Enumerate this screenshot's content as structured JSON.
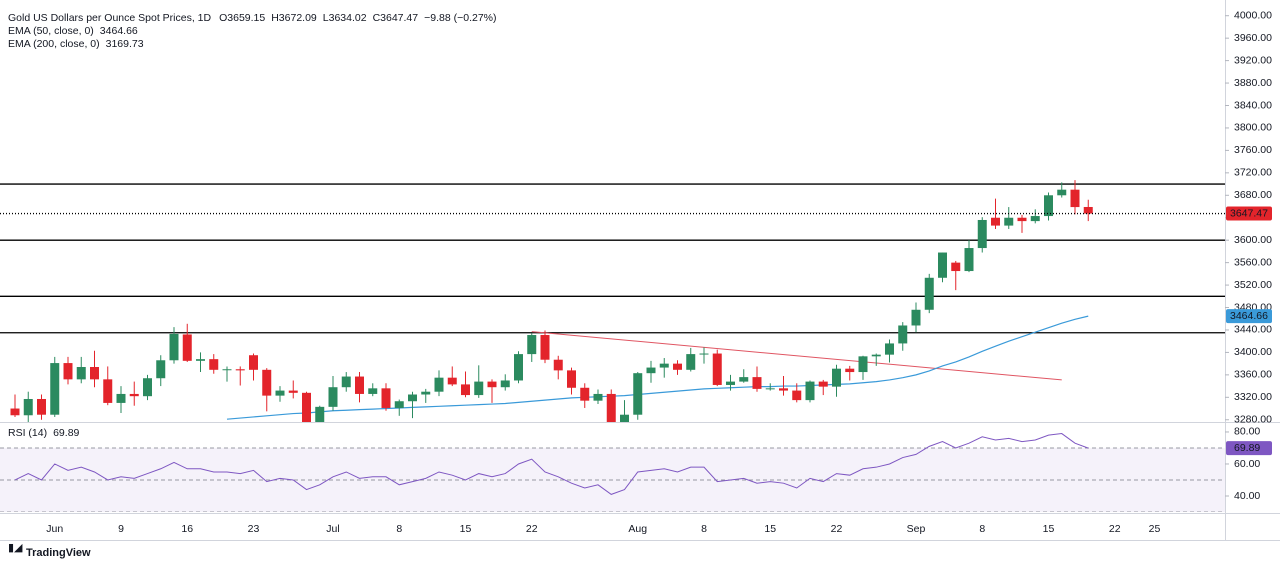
{
  "chart_data": {
    "type": "candlestick",
    "title": "Gold US Dollars per Ounce Spot Prices, 1D",
    "ohlc_text": [
      "O3659.15",
      "H3672.09",
      "L3634.02",
      "C3647.47",
      "−9.88 (−0.27%)"
    ],
    "categories": [
      null,
      null,
      null,
      "Jun",
      null,
      null,
      null,
      null,
      "9",
      null,
      null,
      null,
      null,
      "16",
      null,
      null,
      null,
      null,
      "23",
      null,
      null,
      null,
      null,
      null,
      "Jul",
      null,
      null,
      null,
      null,
      "8",
      null,
      null,
      null,
      null,
      "15",
      null,
      null,
      null,
      null,
      "22",
      null,
      null,
      null,
      null,
      null,
      null,
      null,
      "Aug",
      null,
      null,
      null,
      null,
      "8",
      null,
      null,
      null,
      null,
      "15",
      null,
      null,
      null,
      null,
      "22",
      null,
      null,
      null,
      null,
      null,
      "Sep",
      null,
      null,
      null,
      null,
      "8",
      null,
      null,
      null,
      null,
      "15",
      null,
      null,
      null,
      null,
      "22",
      null,
      null,
      "25"
    ],
    "open": [
      3300,
      3288,
      3317,
      3289,
      3381,
      3352,
      3374,
      3352,
      3310,
      3326,
      3322,
      3354,
      3386,
      3432,
      3385,
      3388,
      3369,
      3370,
      3395,
      3369,
      3323,
      3332,
      3328,
      3274,
      3303,
      3338,
      3357,
      3326,
      3336,
      3301,
      3313,
      3325,
      3330,
      3355,
      3343,
      3324,
      3348,
      3338,
      3350,
      3397,
      3431,
      3387,
      3368,
      3337,
      3314,
      3326,
      3274,
      3289,
      3363,
      3373,
      3380,
      3369,
      3397,
      3398,
      3342,
      3348,
      3356,
      3335,
      3336,
      3332,
      3315,
      3348,
      3339,
      3371,
      3365,
      3393,
      3396,
      3416,
      3448,
      3476,
      3533,
      3560,
      3545,
      3586,
      3640,
      3626,
      3640,
      3634,
      3643,
      3680,
      3690,
      3659.15,
      null,
      null,
      null,
      null,
      null
    ],
    "high": [
      3325,
      3330,
      3325,
      3392,
      3392,
      3392,
      3403,
      3375,
      3340,
      3348,
      3360,
      3395,
      3445,
      3451,
      3400,
      3397,
      3375,
      3375,
      3398,
      3372,
      3340,
      3350,
      3330,
      3305,
      3358,
      3365,
      3365,
      3345,
      3345,
      3316,
      3330,
      3335,
      3368,
      3375,
      3366,
      3377,
      3352,
      3361,
      3402,
      3434,
      3439,
      3394,
      3373,
      3345,
      3334,
      3334,
      3315,
      3365,
      3385,
      3390,
      3386,
      3408,
      3409,
      3405,
      3360,
      3370,
      3375,
      3345,
      3358,
      3345,
      3350,
      3351,
      3378,
      3376,
      3394,
      3398,
      3423,
      3454,
      3489,
      3540,
      3578,
      3563,
      3600,
      3641,
      3674,
      3659,
      3645,
      3655,
      3685,
      3703,
      3707,
      3672.09,
      null,
      null,
      null,
      null,
      null
    ],
    "low": [
      3285,
      3270,
      3280,
      3285,
      3343,
      3345,
      3338,
      3306,
      3292,
      3305,
      3315,
      3340,
      3380,
      3383,
      3365,
      3362,
      3348,
      3341,
      3350,
      3295,
      3312,
      3318,
      3255,
      3260,
      3296,
      3330,
      3311,
      3322,
      3296,
      3287,
      3283,
      3310,
      3322,
      3340,
      3320,
      3319,
      3310,
      3332,
      3345,
      3383,
      3381,
      3352,
      3325,
      3301,
      3308,
      3268,
      3268,
      3280,
      3346,
      3355,
      3360,
      3366,
      3380,
      3340,
      3332,
      3346,
      3330,
      3332,
      3323,
      3311,
      3311,
      3324,
      3321,
      3350,
      3351,
      3376,
      3382,
      3403,
      3436,
      3470,
      3525,
      3511,
      3543,
      3578,
      3620,
      3620,
      3613,
      3630,
      3635,
      3676,
      3646,
      3634.02,
      null,
      null,
      null,
      null,
      null
    ],
    "close": [
      3288,
      3317,
      3289,
      3381,
      3352,
      3374,
      3352,
      3310,
      3326,
      3322,
      3354,
      3386,
      3433,
      3385,
      3388,
      3369,
      3370,
      3368,
      3369,
      3323,
      3332,
      3328,
      3274,
      3303,
      3338,
      3357,
      3326,
      3336,
      3301,
      3313,
      3325,
      3330,
      3355,
      3343,
      3324,
      3348,
      3338,
      3350,
      3397,
      3431,
      3387,
      3368,
      3337,
      3314,
      3326,
      3274,
      3289,
      3363,
      3373,
      3380,
      3369,
      3397,
      3398,
      3342,
      3348,
      3356,
      3335,
      3336,
      3332,
      3315,
      3348,
      3339,
      3371,
      3365,
      3393,
      3396,
      3416,
      3448,
      3476,
      3533,
      3578,
      3545,
      3586,
      3636,
      3626,
      3640,
      3634,
      3643,
      3680,
      3690,
      3659,
      3647.47,
      null,
      null,
      null,
      null,
      null
    ],
    "up_color": "#2b8a5f",
    "down_color": "#e3242b",
    "series": [
      {
        "name": "EMA (50, close, 0)",
        "color": "#3a9ad9",
        "values": [
          null,
          null,
          null,
          null,
          null,
          null,
          null,
          null,
          null,
          null,
          null,
          null,
          null,
          null,
          null,
          null,
          3281,
          3283,
          3285,
          3287,
          3289,
          3291,
          3292,
          3294,
          3296,
          3297,
          3298,
          3299,
          3300,
          3301,
          3302,
          3303,
          3304,
          3305,
          3306,
          3307,
          3308,
          3309,
          3311,
          3313,
          3315,
          3317,
          3319,
          3320,
          3321,
          3322,
          3323,
          3325,
          3327,
          3329,
          3331,
          3333,
          3335,
          3336,
          3337,
          3338,
          3339,
          3339,
          3340,
          3340,
          3341,
          3342,
          3343,
          3344,
          3346,
          3348,
          3351,
          3355,
          3360,
          3367,
          3376,
          3383,
          3392,
          3402,
          3411,
          3420,
          3428,
          3436,
          3444,
          3452,
          3459,
          3464.66,
          null,
          null,
          null,
          null,
          null
        ]
      },
      {
        "name": "EMA (200, close, 0)",
        "color": "#d6336c",
        "last_value": 3169.73
      }
    ],
    "levels": [
      3700,
      3600,
      3500,
      3435
    ],
    "level_color": "#000000",
    "trendline": {
      "x": [
        39,
        79
      ],
      "y": [
        3437,
        3351
      ],
      "color": "#e05562"
    },
    "ylim": [
      3276,
      4028
    ],
    "yticks": [
      {
        "value": 3280,
        "label": "3280.00"
      },
      {
        "value": 3320,
        "label": "3320.00"
      },
      {
        "value": 3360,
        "label": "3360.00"
      },
      {
        "value": 3400,
        "label": "3400.00"
      },
      {
        "value": 3440,
        "label": "3440.00"
      },
      {
        "value": 3480,
        "label": "3480.00"
      },
      {
        "value": 3520,
        "label": "3520.00"
      },
      {
        "value": 3560,
        "label": "3560.00"
      },
      {
        "value": 3600,
        "label": "3600.00"
      },
      {
        "value": 3640,
        "label": "3640.00"
      },
      {
        "value": 3680,
        "label": "3680.00"
      },
      {
        "value": 3720,
        "label": "3720.00"
      },
      {
        "value": 3760,
        "label": "3760.00"
      },
      {
        "value": 3800,
        "label": "3800.00"
      },
      {
        "value": 3840,
        "label": "3840.00"
      },
      {
        "value": 3880,
        "label": "3880.00"
      },
      {
        "value": 3920,
        "label": "3920.00"
      },
      {
        "value": 3960,
        "label": "3960.00"
      },
      {
        "value": 4000,
        "label": "4000.00"
      }
    ],
    "grid": false,
    "rsi": {
      "name": "RSI (14)",
      "color": "#7e57c2",
      "values": [
        50,
        54,
        50,
        60,
        56,
        58,
        55,
        50,
        52,
        51,
        54,
        57,
        61,
        57,
        57,
        55,
        55,
        54,
        56,
        49,
        51,
        50,
        44,
        47,
        52,
        55,
        51,
        52,
        52,
        47,
        49,
        51,
        55,
        53,
        50,
        54,
        52,
        54,
        60,
        63,
        55,
        52,
        48,
        45,
        47,
        41,
        44,
        55,
        56,
        57,
        55,
        58,
        58,
        49,
        50,
        51,
        48,
        49,
        48,
        45,
        51,
        49,
        54,
        53,
        57,
        58,
        60,
        64,
        66,
        71,
        74,
        70,
        73,
        77,
        75,
        76,
        74,
        75,
        78,
        79,
        73,
        69.89,
        null,
        null,
        null,
        null,
        null
      ],
      "ylim": [
        30,
        85.6
      ],
      "yticks": [
        {
          "value": 40,
          "label": "40.00"
        },
        {
          "value": 60,
          "label": "60.00"
        },
        {
          "value": 80,
          "label": "80.00"
        }
      ],
      "levels": [
        70,
        50,
        30
      ]
    }
  },
  "branding": "TradingView"
}
